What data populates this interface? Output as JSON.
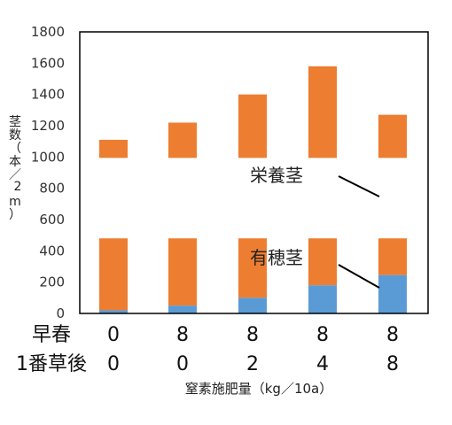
{
  "chart_data": {
    "type": "bar",
    "stacked": true,
    "ylabel": "茎数（本／m²）",
    "ylabel_chars": [
      "茎",
      "数",
      "（",
      "本",
      "／",
      "2",
      "m",
      "）"
    ],
    "xlabel": "窒素施肥量（kg／10a）",
    "ylim": [
      0,
      1800
    ],
    "yticks": [
      0,
      200,
      400,
      600,
      800,
      1000,
      1200,
      1400,
      1600,
      1800
    ],
    "y_break": [
      480,
      1000
    ],
    "grid": false,
    "colors": {
      "panicle": "#5b9bd5",
      "vegetative": "#ed7d31",
      "frame": "#000000"
    },
    "series": [
      {
        "name": "有穂茎",
        "values": [
          20,
          50,
          100,
          180,
          245
        ]
      },
      {
        "name": "栄養茎",
        "values": [
          1090,
          1170,
          1300,
          1400,
          1025
        ]
      }
    ],
    "totals": [
      1110,
      1220,
      1400,
      1580,
      1270
    ],
    "category_rows": [
      {
        "label": "早春",
        "values": [
          "0",
          "8",
          "8",
          "8",
          "8"
        ]
      },
      {
        "label": "1番草後",
        "values": [
          "0",
          "0",
          "2",
          "4",
          "8"
        ]
      }
    ],
    "annotations": [
      {
        "text": "栄養茎",
        "target": "vegetative",
        "bar_index": 4
      },
      {
        "text": "有穂茎",
        "target": "panicle",
        "bar_index": 4
      }
    ]
  }
}
